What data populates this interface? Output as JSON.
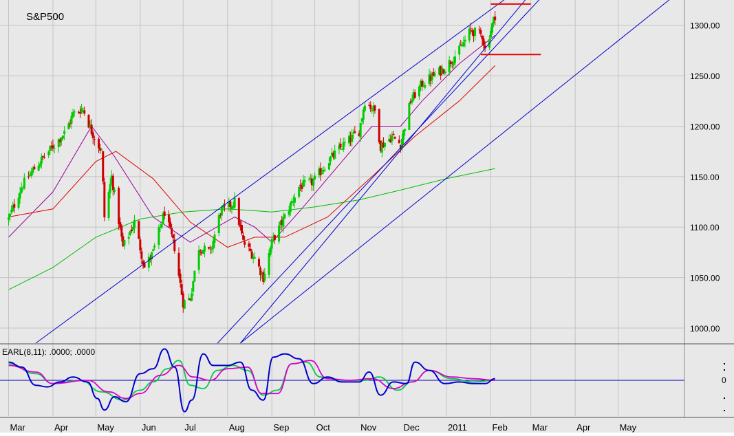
{
  "chart_data": [
    {
      "type": "candlestick",
      "title": "S&P500",
      "ylim": [
        985,
        1325
      ],
      "y_ticks": [
        "1000.00",
        "1050.00",
        "1100.00",
        "1150.00",
        "1200.00",
        "1250.00",
        "1300.00"
      ],
      "x_ticks": [
        "Mar",
        "Apr",
        "May",
        "Jun",
        "Jul",
        "Aug",
        "Sep",
        "Oct",
        "Nov",
        "Dec",
        "2011",
        "Feb",
        "Mar",
        "Apr",
        "May"
      ],
      "grid": true,
      "colors": {
        "up": "#00cc00",
        "down": "#cc0000",
        "trendline": "#0000cc",
        "level_marker": "#ee0000",
        "ma_fast": "#990099",
        "ma_mid": "#dd0000",
        "ma_slow": "#00bb00",
        "background": "#e8e8e8"
      },
      "close_path": [
        [
          "2010-03-01",
          1108
        ],
        [
          "2010-03-10",
          1140
        ],
        [
          "2010-03-20",
          1160
        ],
        [
          "2010-04-01",
          1180
        ],
        [
          "2010-04-10",
          1195
        ],
        [
          "2010-04-15",
          1212
        ],
        [
          "2010-04-22",
          1218
        ],
        [
          "2010-04-28",
          1195
        ],
        [
          "2010-05-05",
          1175
        ],
        [
          "2010-05-07",
          1110
        ],
        [
          "2010-05-12",
          1150
        ],
        [
          "2010-05-20",
          1080
        ],
        [
          "2010-05-28",
          1105
        ],
        [
          "2010-06-04",
          1060
        ],
        [
          "2010-06-10",
          1075
        ],
        [
          "2010-06-18",
          1115
        ],
        [
          "2010-06-25",
          1080
        ],
        [
          "2010-07-01",
          1025
        ],
        [
          "2010-07-06",
          1030
        ],
        [
          "2010-07-12",
          1080
        ],
        [
          "2010-07-20",
          1075
        ],
        [
          "2010-07-27",
          1115
        ],
        [
          "2010-08-06",
          1125
        ],
        [
          "2010-08-12",
          1085
        ],
        [
          "2010-08-20",
          1070
        ],
        [
          "2010-08-26",
          1050
        ],
        [
          "2010-09-01",
          1085
        ],
        [
          "2010-09-10",
          1110
        ],
        [
          "2010-09-20",
          1140
        ],
        [
          "2010-09-30",
          1145
        ],
        [
          "2010-10-10",
          1165
        ],
        [
          "2010-10-20",
          1180
        ],
        [
          "2010-11-01",
          1195
        ],
        [
          "2010-11-05",
          1225
        ],
        [
          "2010-11-12",
          1215
        ],
        [
          "2010-11-16",
          1180
        ],
        [
          "2010-11-24",
          1190
        ],
        [
          "2010-11-30",
          1182
        ],
        [
          "2010-12-07",
          1225
        ],
        [
          "2010-12-15",
          1242
        ],
        [
          "2010-12-31",
          1258
        ],
        [
          "2011-01-10",
          1275
        ],
        [
          "2011-01-18",
          1295
        ],
        [
          "2011-01-26",
          1290
        ],
        [
          "2011-01-28",
          1276
        ],
        [
          "2011-02-04",
          1310
        ]
      ],
      "moving_averages": [
        {
          "name": "fast",
          "points": [
            [
              "2010-03-01",
              1090
            ],
            [
              "2010-04-01",
              1135
            ],
            [
              "2010-04-28",
              1200
            ],
            [
              "2010-05-14",
              1170
            ],
            [
              "2010-06-10",
              1110
            ],
            [
              "2010-07-06",
              1085
            ],
            [
              "2010-08-06",
              1110
            ],
            [
              "2010-08-20",
              1100
            ],
            [
              "2010-09-01",
              1085
            ],
            [
              "2010-09-20",
              1115
            ],
            [
              "2010-10-20",
              1165
            ],
            [
              "2010-11-10",
              1200
            ],
            [
              "2010-11-30",
              1200
            ],
            [
              "2010-12-15",
              1225
            ],
            [
              "2011-01-10",
              1262
            ],
            [
              "2011-02-04",
              1290
            ]
          ]
        },
        {
          "name": "mid",
          "points": [
            [
              "2010-03-01",
              1110
            ],
            [
              "2010-04-01",
              1118
            ],
            [
              "2010-05-01",
              1165
            ],
            [
              "2010-05-15",
              1175
            ],
            [
              "2010-06-10",
              1148
            ],
            [
              "2010-07-06",
              1105
            ],
            [
              "2010-08-01",
              1080
            ],
            [
              "2010-08-20",
              1090
            ],
            [
              "2010-09-10",
              1090
            ],
            [
              "2010-10-10",
              1110
            ],
            [
              "2010-11-10",
              1150
            ],
            [
              "2010-12-10",
              1190
            ],
            [
              "2011-01-10",
              1225
            ],
            [
              "2011-02-04",
              1260
            ]
          ]
        },
        {
          "name": "slow",
          "points": [
            [
              "2010-03-01",
              1038
            ],
            [
              "2010-04-01",
              1060
            ],
            [
              "2010-05-01",
              1090
            ],
            [
              "2010-06-01",
              1108
            ],
            [
              "2010-07-01",
              1115
            ],
            [
              "2010-08-01",
              1118
            ],
            [
              "2010-09-01",
              1115
            ],
            [
              "2010-10-01",
              1120
            ],
            [
              "2010-11-01",
              1127
            ],
            [
              "2010-12-01",
              1137
            ],
            [
              "2011-01-01",
              1148
            ],
            [
              "2011-02-04",
              1158
            ]
          ]
        }
      ],
      "trendlines": [
        {
          "points": [
            [
              "2010-03-20",
              985
            ],
            [
              "2011-02-15",
              1330
            ]
          ]
        },
        {
          "points": [
            [
              "2010-07-25",
              985
            ],
            [
              "2011-03-10",
              1330
            ]
          ]
        },
        {
          "points": [
            [
              "2010-08-10",
              985
            ],
            [
              "2011-02-28",
              1330
            ]
          ]
        },
        {
          "points": [
            [
              "2010-08-10",
              985
            ],
            [
              "2011-06-10",
              1330
            ]
          ]
        }
      ],
      "level_markers": [
        {
          "value": 1321,
          "from": "2011-02-01",
          "to": "2011-03-01"
        },
        {
          "value": 1271,
          "from": "2011-01-25",
          "to": "2011-03-08"
        }
      ]
    },
    {
      "type": "line",
      "title": "EARL(8,11): .0000; .0000",
      "zero_label": "0",
      "ylim": [
        -1,
        1
      ],
      "zero_line_color": "#0000aa",
      "series": [
        {
          "color": "#0000cc",
          "points": [
            [
              "2010-03-01",
              0.55
            ],
            [
              "2010-03-10",
              0.4
            ],
            [
              "2010-03-20",
              -0.15
            ],
            [
              "2010-03-28",
              -0.2
            ],
            [
              "2010-04-06",
              -0.05
            ],
            [
              "2010-04-15",
              0.1
            ],
            [
              "2010-04-25",
              -0.05
            ],
            [
              "2010-05-02",
              -0.55
            ],
            [
              "2010-05-07",
              -0.9
            ],
            [
              "2010-05-14",
              -0.5
            ],
            [
              "2010-05-22",
              -0.65
            ],
            [
              "2010-06-01",
              0.2
            ],
            [
              "2010-06-10",
              0.35
            ],
            [
              "2010-06-18",
              0.95
            ],
            [
              "2010-06-25",
              0.4
            ],
            [
              "2010-07-02",
              -0.95
            ],
            [
              "2010-07-07",
              -0.6
            ],
            [
              "2010-07-15",
              0.8
            ],
            [
              "2010-07-22",
              0.45
            ],
            [
              "2010-08-01",
              0.45
            ],
            [
              "2010-08-10",
              0.55
            ],
            [
              "2010-08-18",
              -0.3
            ],
            [
              "2010-08-26",
              -0.6
            ],
            [
              "2010-09-02",
              0.7
            ],
            [
              "2010-09-10",
              0.8
            ],
            [
              "2010-09-20",
              0.65
            ],
            [
              "2010-09-30",
              -0.1
            ],
            [
              "2010-10-10",
              0.1
            ],
            [
              "2010-10-20",
              -0.05
            ],
            [
              "2010-11-01",
              -0.05
            ],
            [
              "2010-11-08",
              0.25
            ],
            [
              "2010-11-16",
              -0.45
            ],
            [
              "2010-11-25",
              -0.05
            ],
            [
              "2010-12-04",
              -0.1
            ],
            [
              "2010-12-10",
              0.55
            ],
            [
              "2010-12-20",
              0.3
            ],
            [
              "2010-12-31",
              -0.1
            ],
            [
              "2011-01-10",
              -0.05
            ],
            [
              "2011-01-20",
              -0.1
            ],
            [
              "2011-01-28",
              -0.1
            ],
            [
              "2011-02-04",
              0.05
            ]
          ]
        },
        {
          "color": "#00cc44",
          "points": [
            [
              "2010-03-01",
              0.5
            ],
            [
              "2010-03-20",
              0.2
            ],
            [
              "2010-04-01",
              -0.1
            ],
            [
              "2010-04-20",
              0.0
            ],
            [
              "2010-05-05",
              -0.35
            ],
            [
              "2010-05-20",
              -0.6
            ],
            [
              "2010-06-01",
              -0.3
            ],
            [
              "2010-06-10",
              -0.05
            ],
            [
              "2010-06-20",
              0.35
            ],
            [
              "2010-06-28",
              0.6
            ],
            [
              "2010-07-06",
              -0.15
            ],
            [
              "2010-07-15",
              -0.25
            ],
            [
              "2010-07-25",
              0.3
            ],
            [
              "2010-08-05",
              0.45
            ],
            [
              "2010-08-15",
              0.3
            ],
            [
              "2010-08-26",
              -0.45
            ],
            [
              "2010-09-05",
              -0.3
            ],
            [
              "2010-09-15",
              0.5
            ],
            [
              "2010-09-25",
              0.55
            ],
            [
              "2010-10-05",
              0.1
            ],
            [
              "2010-10-20",
              0.0
            ],
            [
              "2010-11-05",
              0.0
            ],
            [
              "2010-11-15",
              0.1
            ],
            [
              "2010-11-28",
              -0.3
            ],
            [
              "2010-12-08",
              -0.05
            ],
            [
              "2010-12-20",
              0.3
            ],
            [
              "2011-01-05",
              0.05
            ],
            [
              "2011-01-20",
              -0.05
            ],
            [
              "2011-02-04",
              0.0
            ]
          ]
        },
        {
          "color": "#dd00cc",
          "points": [
            [
              "2010-03-01",
              0.45
            ],
            [
              "2010-03-20",
              0.25
            ],
            [
              "2010-04-01",
              -0.1
            ],
            [
              "2010-04-25",
              0.0
            ],
            [
              "2010-05-10",
              -0.35
            ],
            [
              "2010-05-22",
              -0.55
            ],
            [
              "2010-06-01",
              -0.4
            ],
            [
              "2010-06-15",
              0.15
            ],
            [
              "2010-06-28",
              0.45
            ],
            [
              "2010-07-08",
              0.1
            ],
            [
              "2010-07-20",
              0.0
            ],
            [
              "2010-08-01",
              0.35
            ],
            [
              "2010-08-15",
              0.4
            ],
            [
              "2010-08-25",
              -0.4
            ],
            [
              "2010-09-05",
              -0.4
            ],
            [
              "2010-09-15",
              0.5
            ],
            [
              "2010-09-28",
              0.6
            ],
            [
              "2010-10-10",
              0.05
            ],
            [
              "2010-10-25",
              0.0
            ],
            [
              "2010-11-10",
              0.05
            ],
            [
              "2010-11-25",
              -0.25
            ],
            [
              "2010-12-08",
              -0.05
            ],
            [
              "2010-12-20",
              0.3
            ],
            [
              "2011-01-05",
              0.1
            ],
            [
              "2011-01-20",
              0.05
            ],
            [
              "2011-02-04",
              0.0
            ]
          ]
        }
      ]
    }
  ]
}
